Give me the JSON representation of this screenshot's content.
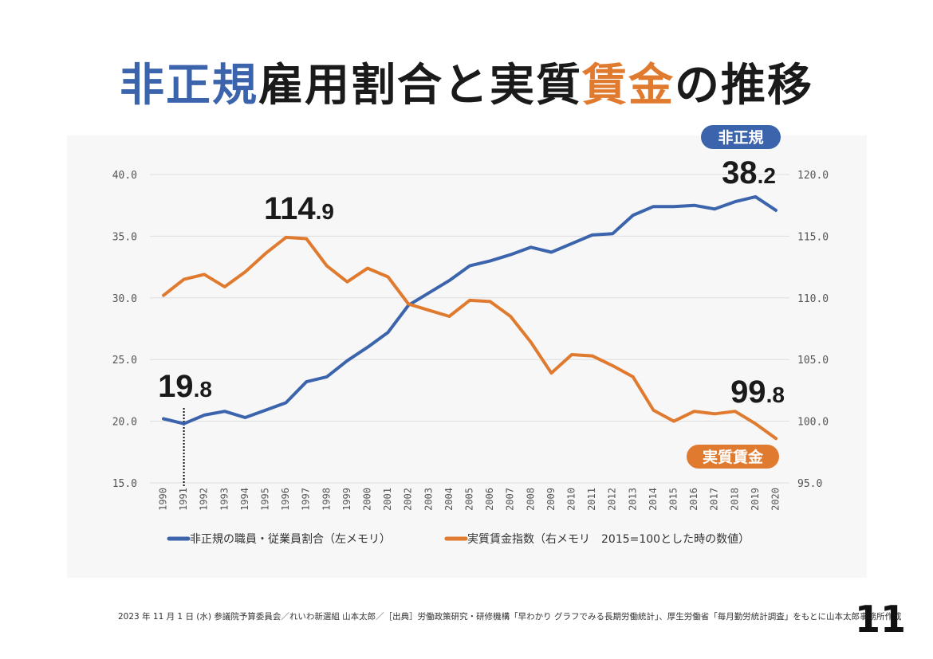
{
  "page": {
    "title_part1": "非正規",
    "title_part2": "雇用割合と実質",
    "title_part3": "賃金",
    "title_part4": "の推移",
    "footer": "2023 年 11 月 1 日 (水) 参議院予算委員会／れいわ新選組 山本太郎／［出典］労働政策研究・研修機構「早わかり グラフでみる長期労働統計」、厚生労働省「毎月勤労統計調査」をもとに山本太郎事務所作成",
    "page_number": "11"
  },
  "colors": {
    "blue": "#3b64ad",
    "orange": "#e07a2f",
    "grid": "#dddddd",
    "axis_text": "#555555"
  },
  "chart_data": {
    "type": "line",
    "categories": [
      "1990",
      "1991",
      "1992",
      "1993",
      "1994",
      "1995",
      "1996",
      "1997",
      "1998",
      "1999",
      "2000",
      "2001",
      "2002",
      "2003",
      "2004",
      "2005",
      "2006",
      "2007",
      "2008",
      "2009",
      "2010",
      "2011",
      "2012",
      "2013",
      "2014",
      "2015",
      "2016",
      "2017",
      "2018",
      "2019",
      "2020"
    ],
    "left_axis": {
      "ylim": [
        15,
        40
      ],
      "ticks": [
        "15.0",
        "20.0",
        "25.0",
        "30.0",
        "35.0",
        "40.0"
      ]
    },
    "right_axis": {
      "ylim": [
        95,
        120
      ],
      "ticks": [
        "95.0",
        "100.0",
        "105.0",
        "110.0",
        "115.0",
        "120.0"
      ]
    },
    "series": [
      {
        "name": "非正規の職員・従業員割合（左メモリ）",
        "axis": "left",
        "color": "#3b64ad",
        "values": [
          20.2,
          19.8,
          20.5,
          20.8,
          20.3,
          20.9,
          21.5,
          23.2,
          23.6,
          24.9,
          26.0,
          27.2,
          29.4,
          30.4,
          31.4,
          32.6,
          33.0,
          33.5,
          34.1,
          33.7,
          34.4,
          35.1,
          35.2,
          36.7,
          37.4,
          37.4,
          37.5,
          37.2,
          37.8,
          38.2,
          37.1
        ]
      },
      {
        "name": "実質賃金指数（右メモリ　2015=100とした時の数値）",
        "axis": "right",
        "color": "#e07a2f",
        "values": [
          110.2,
          111.5,
          111.9,
          110.9,
          112.1,
          113.6,
          114.9,
          114.8,
          112.6,
          111.3,
          112.4,
          111.7,
          109.5,
          109.0,
          108.5,
          109.8,
          109.7,
          108.5,
          106.4,
          103.9,
          105.4,
          105.3,
          104.5,
          103.6,
          100.9,
          100.0,
          100.8,
          100.6,
          100.8,
          99.8,
          98.6
        ]
      }
    ],
    "annotations": {
      "blue_start": {
        "big": "19",
        "small": ".8"
      },
      "blue_end": {
        "big": "38",
        "small": ".2"
      },
      "orange_peak": {
        "big": "114",
        "small": ".9"
      },
      "orange_end": {
        "big": "99",
        "small": ".8"
      },
      "badge_blue": "非正規",
      "badge_orange": "実質賃金"
    },
    "grid": true,
    "legend_position": "bottom"
  }
}
